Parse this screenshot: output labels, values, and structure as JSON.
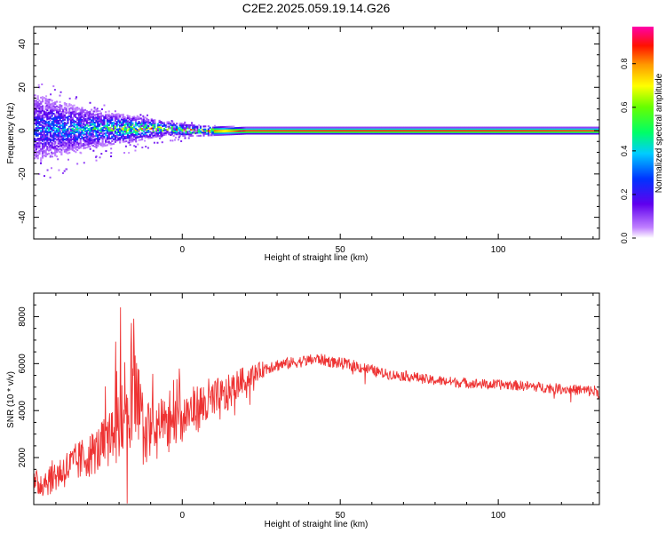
{
  "title": "C2E2.2025.059.19.14.G26",
  "chart_data": [
    {
      "type": "heatmap",
      "title": "",
      "xlabel": "Height of straight line (km)",
      "ylabel": "Frequency (Hz)",
      "xlim": [
        -47,
        132
      ],
      "ylim": [
        -50,
        48
      ],
      "x_ticks": [
        0,
        50,
        100
      ],
      "y_ticks": [
        -40,
        -20,
        0,
        20,
        40
      ],
      "colorbar": {
        "label": "Normalized spectral amplitude",
        "range": [
          0.0,
          0.97
        ],
        "ticks": [
          0.0,
          0.2,
          0.4,
          0.6,
          0.8
        ],
        "tick_labels": [
          "0.0",
          "0.2",
          "0.4",
          "0.6",
          "0.8"
        ],
        "colormap": "rainbow (white-purple-blue-cyan-green-yellow-orange-red-magenta)"
      },
      "ridge": {
        "description": "Signal concentrated near 0 Hz; broad and noisy at low heights, narrowing to a steady red line above ~20 km",
        "points": [
          {
            "x": -45,
            "center_hz": 1,
            "spread_hz": 20,
            "peak_amplitude": 0.35
          },
          {
            "x": -35,
            "center_hz": 1,
            "spread_hz": 14,
            "peak_amplitude": 0.45
          },
          {
            "x": -25,
            "center_hz": 1,
            "spread_hz": 10,
            "peak_amplitude": 0.55
          },
          {
            "x": -15,
            "center_hz": 1,
            "spread_hz": 7,
            "peak_amplitude": 0.75
          },
          {
            "x": -5,
            "center_hz": 1,
            "spread_hz": 4,
            "peak_amplitude": 0.8
          },
          {
            "x": 5,
            "center_hz": 0,
            "spread_hz": 3,
            "peak_amplitude": 0.9
          },
          {
            "x": 20,
            "center_hz": 0,
            "spread_hz": 2,
            "peak_amplitude": 0.95
          },
          {
            "x": 50,
            "center_hz": 0,
            "spread_hz": 2,
            "peak_amplitude": 0.97
          },
          {
            "x": 100,
            "center_hz": 0,
            "spread_hz": 2,
            "peak_amplitude": 0.97
          },
          {
            "x": 132,
            "center_hz": 0,
            "spread_hz": 2,
            "peak_amplitude": 0.95
          }
        ]
      }
    },
    {
      "type": "line",
      "title": "",
      "xlabel": "Height of straight line (km)",
      "ylabel": "SNR (10 * v/v)",
      "xlim": [
        -47,
        132
      ],
      "ylim": [
        0,
        9000
      ],
      "x_ticks": [
        0,
        50,
        100
      ],
      "y_ticks": [
        2000,
        4000,
        6000,
        8000
      ],
      "color": "#ee3333",
      "series": [
        {
          "name": "",
          "x": [
            -47,
            -42,
            -37,
            -32,
            -27,
            -22,
            -20,
            -17,
            -15,
            -12,
            -7,
            -2,
            3,
            8,
            13,
            18,
            23,
            28,
            33,
            38,
            43,
            48,
            53,
            58,
            63,
            68,
            73,
            78,
            83,
            88,
            93,
            98,
            103,
            108,
            113,
            118,
            123,
            128,
            132
          ],
          "y": [
            800,
            1100,
            1500,
            1900,
            2300,
            2900,
            4200,
            3300,
            4500,
            3000,
            3200,
            3500,
            4000,
            4300,
            4500,
            5200,
            5600,
            5900,
            6000,
            6100,
            6200,
            6050,
            5950,
            5800,
            5600,
            5500,
            5450,
            5300,
            5250,
            5200,
            5150,
            5100,
            5100,
            5050,
            5000,
            4950,
            4900,
            4850,
            4800
          ],
          "noise": [
            600,
            700,
            800,
            900,
            1000,
            1200,
            2500,
            1500,
            2500,
            1400,
            1300,
            1100,
            1000,
            1100,
            900,
            600,
            400,
            300,
            250,
            250,
            250,
            250,
            250,
            250,
            220,
            220,
            220,
            220,
            220,
            220,
            220,
            220,
            220,
            220,
            220,
            220,
            220,
            250,
            300
          ]
        }
      ]
    }
  ]
}
